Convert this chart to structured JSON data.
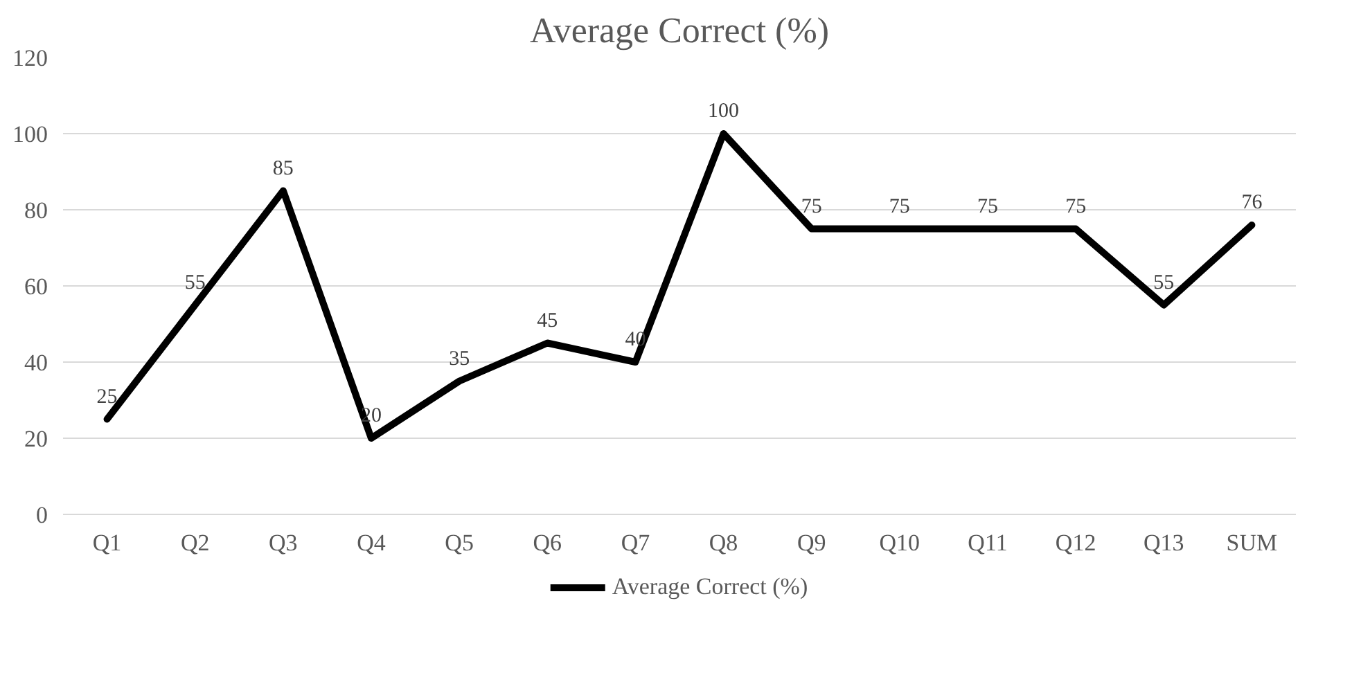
{
  "chart_data": {
    "type": "line",
    "title": "Average Correct (%)",
    "categories": [
      "Q1",
      "Q2",
      "Q3",
      "Q4",
      "Q5",
      "Q6",
      "Q7",
      "Q8",
      "Q9",
      "Q10",
      "Q11",
      "Q12",
      "Q13",
      "SUM"
    ],
    "series": [
      {
        "name": "Average Correct (%)",
        "color": "#000000",
        "values": [
          25,
          55,
          85,
          20,
          35,
          45,
          40,
          100,
          75,
          75,
          75,
          75,
          55,
          76
        ]
      }
    ],
    "ylim": [
      0,
      120
    ],
    "yticks": [
      0,
      20,
      40,
      60,
      80,
      100,
      120
    ],
    "grid": "y",
    "legend": "bottom",
    "data_labels": true,
    "marker": "none",
    "line_style": "solid"
  }
}
